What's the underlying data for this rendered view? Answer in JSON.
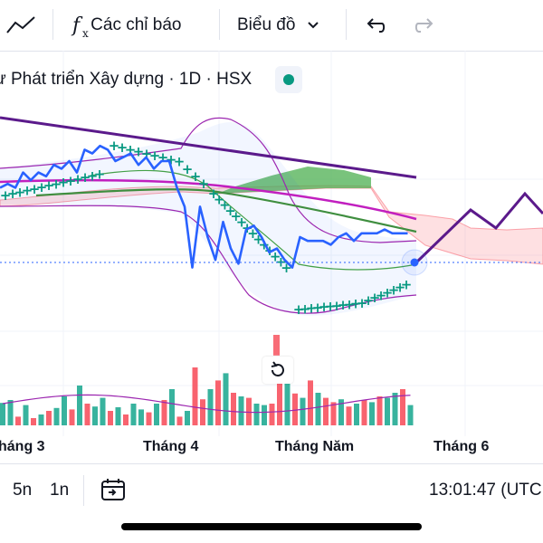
{
  "toolbar": {
    "indicators_label": "Các chỉ báo",
    "chart_type_label": "Biểu đồ"
  },
  "header": {
    "symbol_line": "ư Phát triển Xây dựng · 1D · HSX",
    "market_status_color": "#089981"
  },
  "x_axis": {
    "labels": [
      "háng 3",
      "Tháng 4",
      "Tháng Năm",
      "Tháng 6"
    ]
  },
  "bottom_bar": {
    "range_5n": "5n",
    "range_1n": "1n",
    "clock": "13:01:47 (UTC"
  },
  "colors": {
    "up": "#22ab94",
    "down": "#f7525f",
    "price_line": "#2962ff",
    "trend": "#5b1a8b",
    "sar": "#089981",
    "bollinger": "#9c27b0",
    "kumo_bull": "#4caf50",
    "kumo_bear": "#f7525f"
  },
  "icons": [
    "trend-line-icon",
    "fx-icon",
    "chevron-down-icon",
    "undo-icon",
    "redo-icon",
    "date-range-icon",
    "reset-icon"
  ],
  "chart_data": {
    "type": "line",
    "price": [
      0.33,
      0.34,
      0.33,
      0.37,
      0.35,
      0.37,
      0.36,
      0.39,
      0.38,
      0.4,
      0.37,
      0.43,
      0.42,
      0.44,
      0.43,
      0.4,
      0.41,
      0.42,
      0.39,
      0.41,
      0.38,
      0.4,
      0.4,
      0.33,
      0.28,
      0.12,
      0.28,
      0.2,
      0.14,
      0.24,
      0.17,
      0.13,
      0.22,
      0.23,
      0.2,
      0.16,
      0.17,
      0.14,
      0.12,
      0.2,
      0.19,
      0.19,
      0.19,
      0.18,
      0.2,
      0.21,
      0.19,
      0.21,
      0.21,
      0.21,
      0.22,
      0.21,
      0.21,
      0.21
    ],
    "volume_up": [
      true,
      true,
      false,
      true,
      false,
      true,
      false,
      true,
      true,
      false,
      true,
      false,
      true,
      true,
      false,
      true,
      false,
      true,
      true,
      false,
      true,
      false,
      true,
      false,
      true,
      false,
      false,
      true,
      false,
      true,
      false,
      true,
      false,
      true,
      true,
      false,
      false,
      true,
      false,
      true,
      false,
      true,
      false,
      false,
      true,
      false,
      true,
      false,
      true,
      false,
      true,
      true,
      false,
      true
    ],
    "volume": [
      0.31,
      0.35,
      0.12,
      0.28,
      0.1,
      0.15,
      0.2,
      0.24,
      0.4,
      0.22,
      0.55,
      0.3,
      0.26,
      0.38,
      0.2,
      0.25,
      0.15,
      0.3,
      0.22,
      0.18,
      0.3,
      0.35,
      0.5,
      0.12,
      0.2,
      0.8,
      0.36,
      0.5,
      0.62,
      0.72,
      0.45,
      0.4,
      0.38,
      0.3,
      0.28,
      0.3,
      0.65,
      0.88,
      0.44,
      0.38,
      0.62,
      0.45,
      0.38,
      0.32,
      0.36,
      0.26,
      0.3,
      0.35,
      0.32,
      0.4,
      0.38,
      0.45,
      0.5,
      0.28
    ],
    "volume_spike_live": 0.95
  }
}
